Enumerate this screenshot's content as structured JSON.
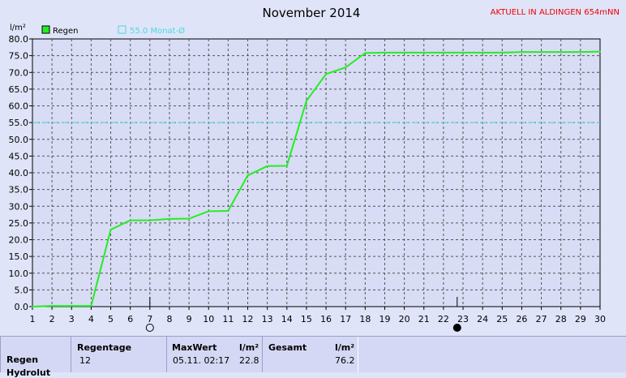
{
  "chart_data": {
    "type": "line",
    "title": "November 2014",
    "station": "AKTUELL IN ALDINGEN 654mNN",
    "ylabel": "l/m²",
    "xlim": [
      1,
      30
    ],
    "ylim": [
      0,
      80
    ],
    "yticks": [
      "0.0",
      "5.0",
      "10.0",
      "15.0",
      "20.0",
      "25.0",
      "30.0",
      "35.0",
      "40.0",
      "45.0",
      "50.0",
      "55.0",
      "60.0",
      "65.0",
      "70.0",
      "75.0",
      "80.0"
    ],
    "xticks": [
      "1",
      "2",
      "3",
      "4",
      "5",
      "6",
      "7",
      "8",
      "9",
      "10",
      "11",
      "12",
      "13",
      "14",
      "15",
      "16",
      "17",
      "18",
      "19",
      "20",
      "21",
      "22",
      "23",
      "24",
      "25",
      "26",
      "27",
      "28",
      "29",
      "30"
    ],
    "grid": true,
    "legend_position": "top-left",
    "series": [
      {
        "name": "Regen",
        "color": "#22ee22",
        "points": [
          [
            1,
            0.0
          ],
          [
            2,
            0.2
          ],
          [
            3,
            0.2
          ],
          [
            4,
            0.2
          ],
          [
            5,
            23.0
          ],
          [
            6,
            25.8
          ],
          [
            7,
            25.8
          ],
          [
            8,
            26.2
          ],
          [
            9,
            26.3
          ],
          [
            10,
            28.5
          ],
          [
            11,
            28.6
          ],
          [
            12,
            39.2
          ],
          [
            13,
            42.0
          ],
          [
            14,
            42.1
          ],
          [
            15,
            61.5
          ],
          [
            16,
            69.5
          ],
          [
            17,
            71.5
          ],
          [
            18,
            75.8
          ],
          [
            19,
            75.9
          ],
          [
            20,
            75.9
          ],
          [
            21,
            75.9
          ],
          [
            22,
            75.9
          ],
          [
            23,
            75.9
          ],
          [
            24,
            75.9
          ],
          [
            25,
            75.9
          ],
          [
            26,
            76.1
          ],
          [
            27,
            76.1
          ],
          [
            28,
            76.1
          ],
          [
            29,
            76.1
          ],
          [
            30,
            76.2
          ]
        ]
      }
    ],
    "reference": {
      "name": "55.0 Monat-Ø",
      "value": 55.0,
      "color": "#44dddd"
    },
    "moon_markers": [
      {
        "day": 7,
        "phase": "full-moon"
      },
      {
        "day": 22.7,
        "phase": "new-moon"
      }
    ]
  },
  "summary": {
    "row_label": "Regen",
    "row_label_2": "Hydrolut",
    "regentage_header": "Regentage",
    "regentage_value": "12",
    "maxwert_header": "MaxWert",
    "maxwert_unit": "l/m²",
    "maxwert_date": "05.11.  02:17",
    "maxwert_value": "22.8",
    "gesamt_header": "Gesamt",
    "gesamt_unit": "l/m²",
    "gesamt_value": "76.2"
  }
}
